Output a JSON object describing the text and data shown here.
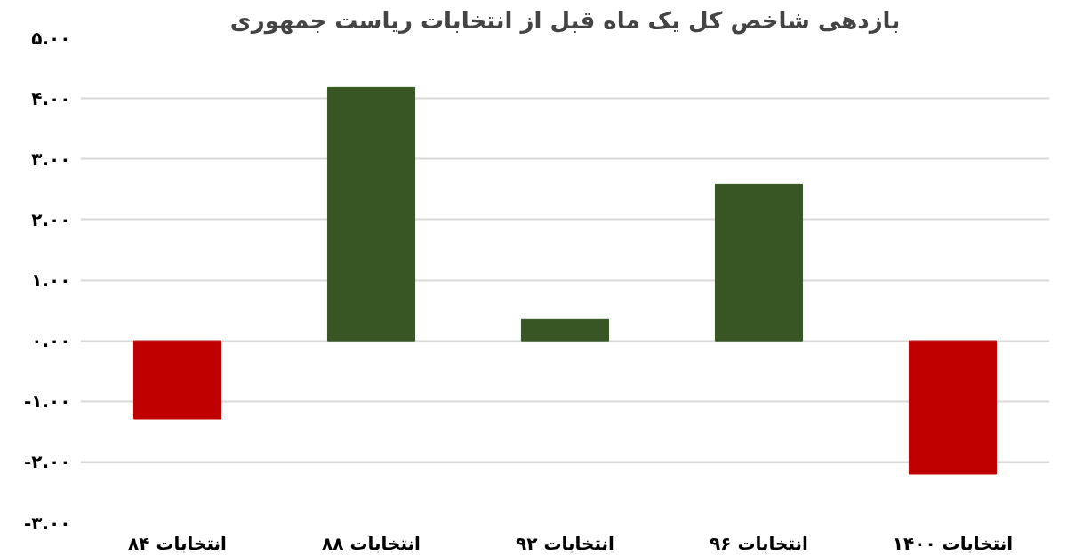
{
  "chart_data": {
    "type": "bar",
    "title": "بازدهی شاخص کل یک ماه قبل از انتخابات ریاست جمهوری",
    "categories": [
      "انتخابات ۸۴",
      "انتخابات ۸۸",
      "انتخابات ۹۲",
      "انتخابات ۹۶",
      "انتخابات ۱۴۰۰"
    ],
    "values": [
      -1.29,
      4.18,
      0.35,
      2.58,
      -2.2
    ],
    "colors": [
      "#c00000",
      "#375623",
      "#375623",
      "#375623",
      "#c00000"
    ],
    "ylim": [
      -3,
      5
    ],
    "yticks": [
      {
        "value": 5,
        "label": "۵.۰۰"
      },
      {
        "value": 4,
        "label": "۴.۰۰"
      },
      {
        "value": 3,
        "label": "۳.۰۰"
      },
      {
        "value": 2,
        "label": "۲.۰۰"
      },
      {
        "value": 1,
        "label": "۱.۰۰"
      },
      {
        "value": 0,
        "label": "۰.۰۰"
      },
      {
        "value": -1,
        "label": "-۱.۰۰"
      },
      {
        "value": -2,
        "label": "-۲.۰۰"
      },
      {
        "value": -3,
        "label": "-۳.۰۰"
      }
    ],
    "grid": "y"
  }
}
